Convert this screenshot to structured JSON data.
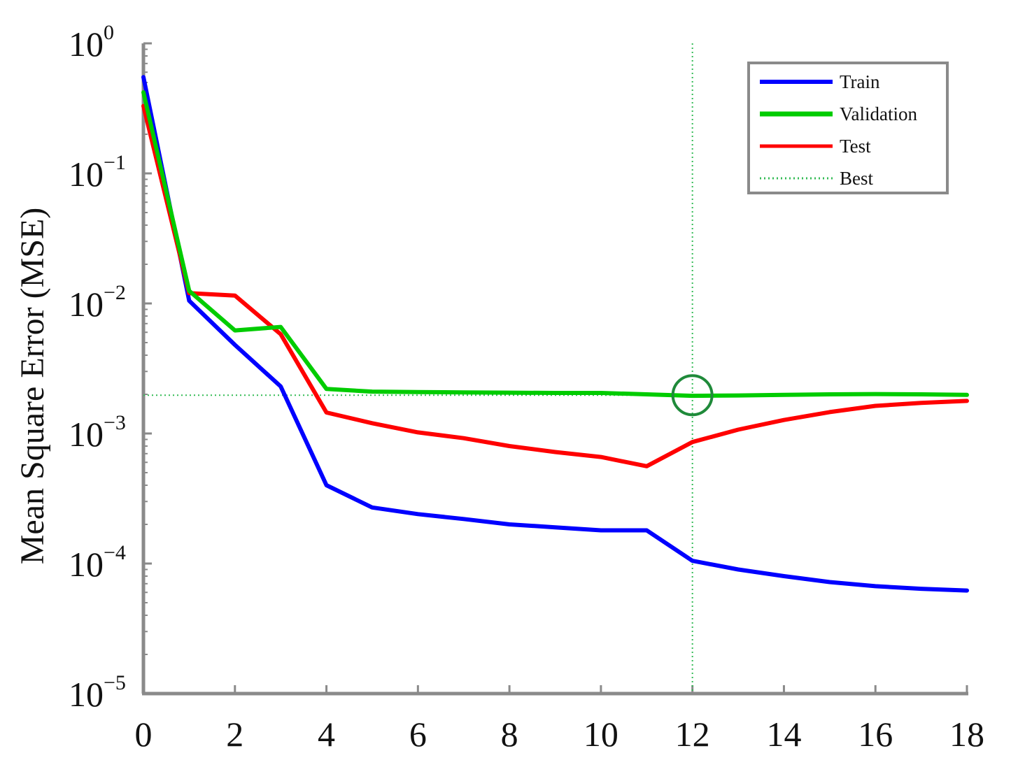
{
  "chart_data": {
    "type": "line",
    "title": "",
    "xlabel": "",
    "ylabel": "Mean Square Error (MSE)",
    "y_scale": "log",
    "xlim": [
      0,
      18
    ],
    "ylim": [
      1e-05,
      1
    ],
    "x_ticks": [
      {
        "value": 0,
        "label": "0"
      },
      {
        "value": 2,
        "label": "2"
      },
      {
        "value": 4,
        "label": "4"
      },
      {
        "value": 6,
        "label": "6"
      },
      {
        "value": 8,
        "label": "8"
      },
      {
        "value": 10,
        "label": "10"
      },
      {
        "value": 12,
        "label": "12"
      },
      {
        "value": 14,
        "label": "14"
      },
      {
        "value": 16,
        "label": "16"
      },
      {
        "value": 18,
        "label": "18"
      }
    ],
    "y_ticks": [
      {
        "value": 1,
        "base": "10",
        "exp": "0"
      },
      {
        "value": 0.1,
        "base": "10",
        "exp": "−1"
      },
      {
        "value": 0.01,
        "base": "10",
        "exp": "−2"
      },
      {
        "value": 0.001,
        "base": "10",
        "exp": "−3"
      },
      {
        "value": 0.0001,
        "base": "10",
        "exp": "−4"
      },
      {
        "value": 1e-05,
        "base": "10",
        "exp": "−5"
      }
    ],
    "x": [
      0,
      1,
      2,
      3,
      4,
      5,
      6,
      7,
      8,
      9,
      10,
      11,
      12,
      13,
      14,
      15,
      16,
      17,
      18
    ],
    "series": [
      {
        "name": "Train",
        "color": "#0000ff",
        "values": [
          0.55,
          0.0105,
          0.0048,
          0.0023,
          0.0004,
          0.00027,
          0.00024,
          0.00022,
          0.0002,
          0.00019,
          0.00018,
          0.00018,
          0.000105,
          9e-05,
          8e-05,
          7.2e-05,
          6.7e-05,
          6.4e-05,
          6.2e-05
        ]
      },
      {
        "name": "Validation",
        "color": "#00cc00",
        "values": [
          0.42,
          0.0125,
          0.0062,
          0.0066,
          0.0022,
          0.0021,
          0.00208,
          0.00207,
          0.00206,
          0.00205,
          0.00205,
          0.002,
          0.00195,
          0.00196,
          0.00198,
          0.002,
          0.00201,
          0.002,
          0.00198
        ]
      },
      {
        "name": "Test",
        "color": "#ff0000",
        "values": [
          0.33,
          0.012,
          0.0115,
          0.0058,
          0.00145,
          0.0012,
          0.00102,
          0.00092,
          0.0008,
          0.00072,
          0.00066,
          0.00056,
          0.00086,
          0.00107,
          0.00127,
          0.00146,
          0.00163,
          0.00172,
          0.00178
        ]
      }
    ],
    "best": {
      "name": "Best",
      "x": 12,
      "y": 0.00197,
      "color": "#33bb55"
    },
    "grid": false,
    "legend": {
      "placement": "top-right",
      "entries": [
        "Train",
        "Validation",
        "Test",
        "Best"
      ]
    }
  }
}
